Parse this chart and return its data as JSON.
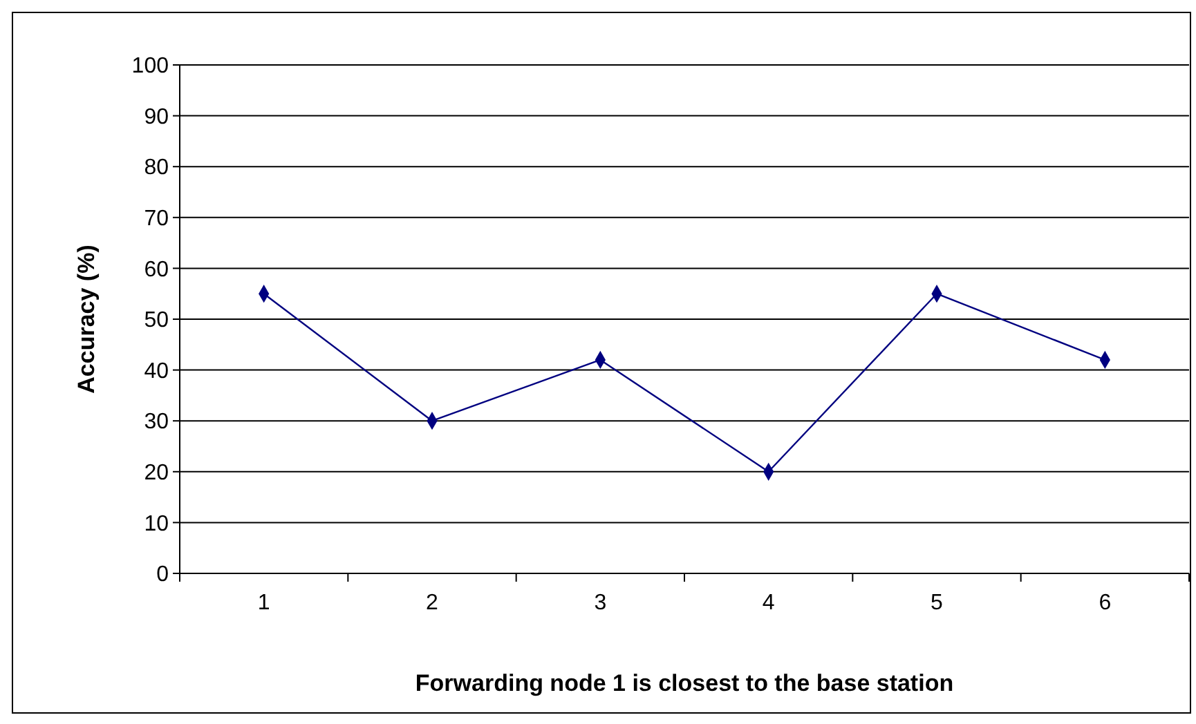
{
  "chart_data": {
    "type": "line",
    "xlabel": "Forwarding node 1 is closest to the base station",
    "ylabel": "Accuracy (%)",
    "categories": [
      "1",
      "2",
      "3",
      "4",
      "5",
      "6"
    ],
    "series": [
      {
        "color": "#000080",
        "values": [
          55,
          30,
          42,
          20,
          55,
          42
        ]
      }
    ],
    "ylim": [
      0,
      100
    ],
    "yticks": [
      0,
      10,
      20,
      30,
      40,
      50,
      60,
      70,
      80,
      90,
      100
    ],
    "grid": "y",
    "marker": "diamond",
    "line_style": "solid"
  }
}
